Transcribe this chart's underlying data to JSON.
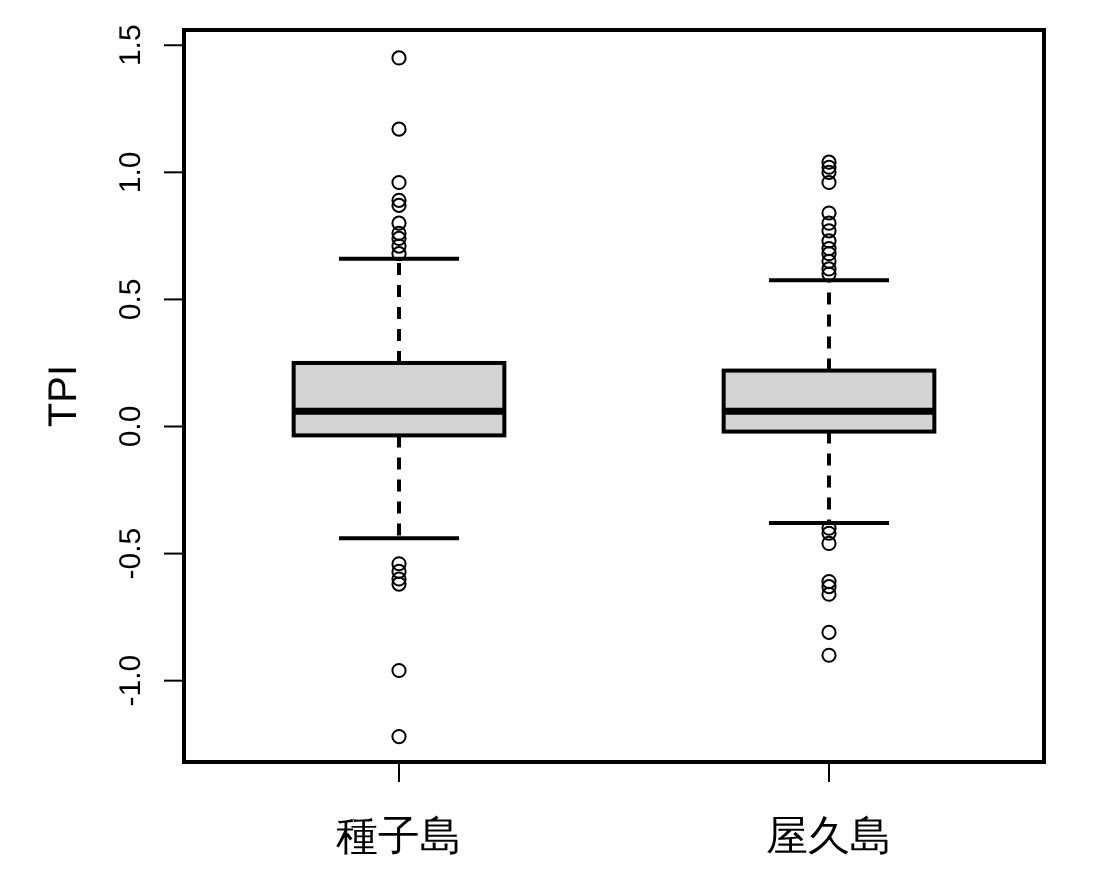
{
  "chart_data": {
    "type": "box",
    "ylabel": "TPI",
    "categories": [
      "種子島",
      "屋久島"
    ],
    "color": "#d3d3d3",
    "ylim": [
      -1.32,
      1.56
    ],
    "yticks": [
      {
        "value": -1,
        "label": "-1.0"
      },
      {
        "value": -0.5,
        "label": "-0.5"
      },
      {
        "value": 0,
        "label": "0.0"
      },
      {
        "value": 0.5,
        "label": "0.5"
      },
      {
        "value": 1,
        "label": "1.0"
      },
      {
        "value": 1.5,
        "label": "1.5"
      }
    ],
    "grid": false,
    "boxes": [
      {
        "low": -0.44,
        "q1": -0.035,
        "median": 0.06,
        "q3": 0.25,
        "high": 0.66,
        "outliers": [
          1.45,
          1.17,
          0.96,
          0.89,
          0.87,
          0.8,
          0.76,
          0.74,
          0.71,
          0.68,
          -0.54,
          -0.57,
          -0.6,
          -0.62,
          -0.96,
          -1.22
        ]
      },
      {
        "low": -0.38,
        "q1": -0.02,
        "median": 0.06,
        "q3": 0.22,
        "high": 0.575,
        "outliers": [
          1.04,
          1.02,
          1.0,
          0.96,
          0.84,
          0.8,
          0.77,
          0.73,
          0.7,
          0.68,
          0.65,
          0.62,
          0.6,
          -0.4,
          -0.42,
          -0.46,
          -0.61,
          -0.63,
          -0.66,
          -0.81,
          -0.9
        ]
      }
    ]
  }
}
